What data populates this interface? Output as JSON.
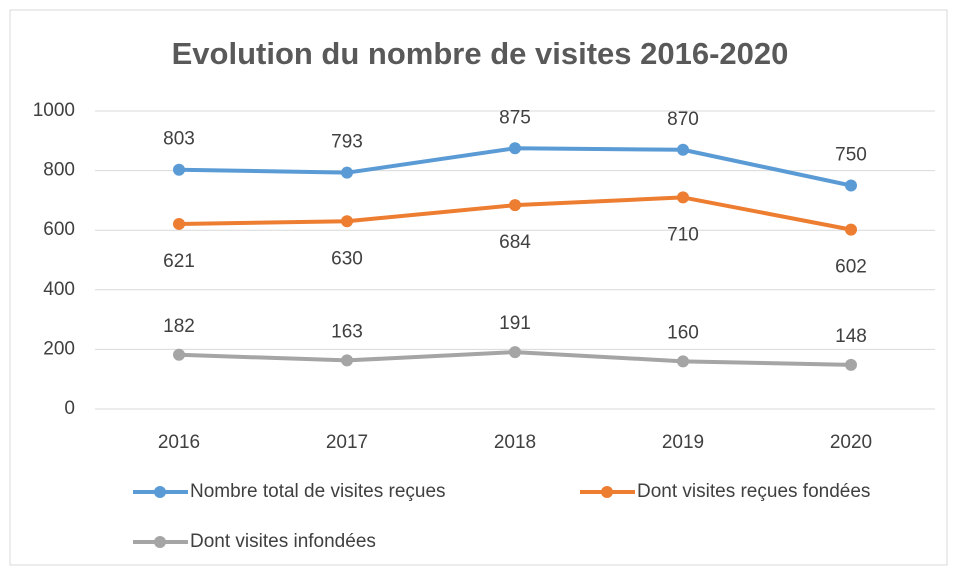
{
  "chart_data": {
    "type": "line",
    "title": "Evolution du nombre de visites 2016-2020",
    "categories": [
      "2016",
      "2017",
      "2018",
      "2019",
      "2020"
    ],
    "series": [
      {
        "name": "Nombre total de visites reçues",
        "color": "#5b9bd5",
        "values": [
          803,
          793,
          875,
          870,
          750
        ]
      },
      {
        "name": "Dont visites reçues fondées",
        "color": "#ed7d31",
        "values": [
          621,
          630,
          684,
          710,
          602
        ]
      },
      {
        "name": "Dont visites infondées",
        "color": "#a5a5a5",
        "values": [
          182,
          163,
          191,
          160,
          148
        ]
      }
    ],
    "ylim": [
      0,
      1000
    ],
    "yticks": [
      0,
      200,
      400,
      600,
      800,
      1000
    ],
    "grid": true,
    "legend": "bottom"
  }
}
